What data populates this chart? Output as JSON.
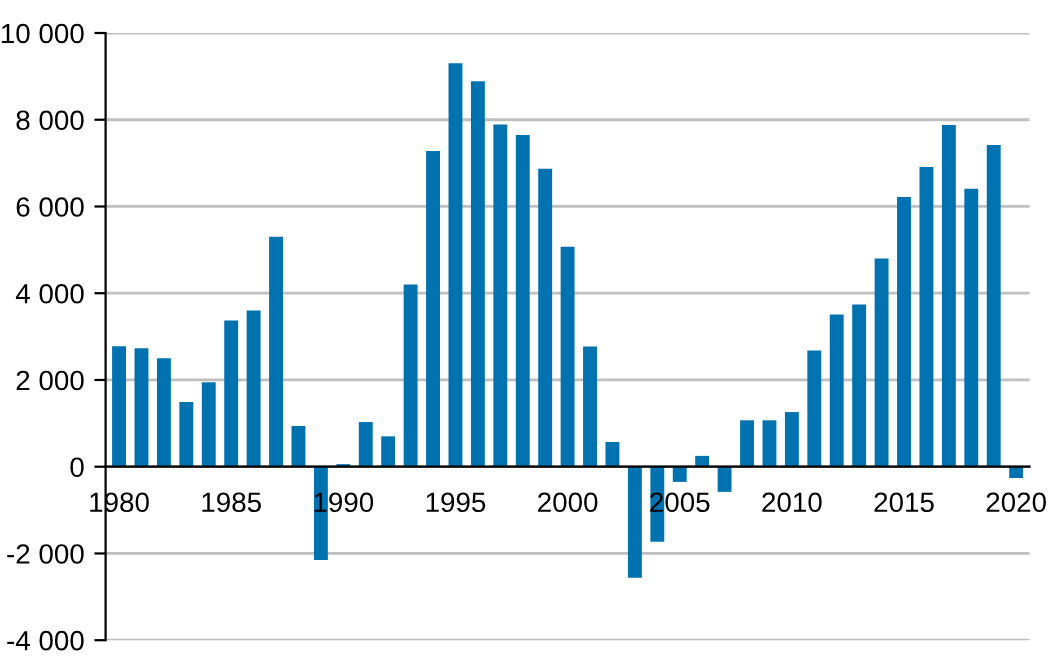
{
  "chart_data": {
    "type": "bar",
    "categories": [
      "1980",
      null,
      null,
      null,
      null,
      "1985",
      null,
      null,
      null,
      null,
      "1990",
      null,
      null,
      null,
      null,
      "1995",
      null,
      null,
      null,
      null,
      "2000",
      null,
      null,
      null,
      null,
      "2005",
      null,
      null,
      null,
      null,
      "2010",
      null,
      null,
      null,
      null,
      "2015",
      null,
      null,
      null,
      null,
      "2020"
    ],
    "values": [
      2780,
      2730,
      2500,
      1490,
      1950,
      3370,
      3600,
      5300,
      940,
      -2150,
      60,
      1030,
      700,
      4200,
      7280,
      9300,
      8890,
      7890,
      7650,
      6870,
      5070,
      2770,
      570,
      -2560,
      -1730,
      -350,
      250,
      -580,
      1070,
      1070,
      1260,
      2680,
      3510,
      3740,
      4800,
      6220,
      6910,
      7880,
      6410,
      7420,
      -260
    ],
    "color": "#0072b0",
    "ylim": [
      -4000,
      10000
    ],
    "yticks": [
      {
        "value": -4000,
        "label": "-4 000"
      },
      {
        "value": -2000,
        "label": "-2 000"
      },
      {
        "value": 0,
        "label": "0"
      },
      {
        "value": 2000,
        "label": "2 000"
      },
      {
        "value": 4000,
        "label": "4 000"
      },
      {
        "value": 6000,
        "label": "6 000"
      },
      {
        "value": 8000,
        "label": "8 000"
      },
      {
        "value": 10000,
        "label": "10 000"
      }
    ],
    "grid": "y"
  }
}
